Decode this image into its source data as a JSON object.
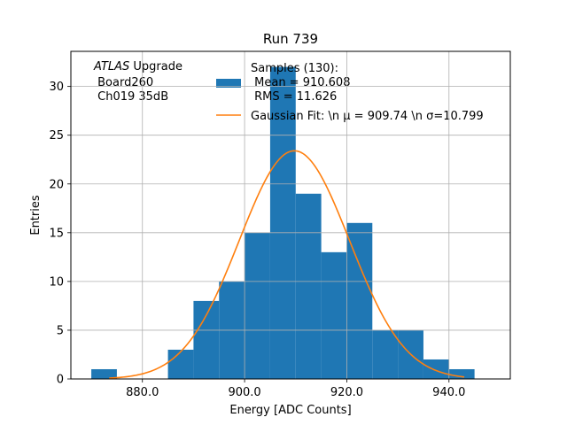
{
  "chart_data": {
    "type": "bar",
    "title": "Run 739",
    "xlabel": "Energy [ADC Counts]",
    "ylabel": "Entries",
    "xlim": [
      866.0,
      952.0
    ],
    "ylim": [
      0,
      33.6
    ],
    "grid": true,
    "xticks": [
      880.0,
      900.0,
      920.0,
      940.0
    ],
    "xtick_labels": [
      "880.0",
      "900.0",
      "920.0",
      "940.0"
    ],
    "yticks": [
      0,
      5,
      10,
      15,
      20,
      25,
      30
    ],
    "ytick_labels": [
      "0",
      "5",
      "10",
      "15",
      "20",
      "25",
      "30"
    ],
    "bin_width": 5,
    "bins": [
      {
        "x0": 870,
        "value": 1
      },
      {
        "x0": 875,
        "value": 0
      },
      {
        "x0": 880,
        "value": 0
      },
      {
        "x0": 885,
        "value": 3
      },
      {
        "x0": 890,
        "value": 8
      },
      {
        "x0": 895,
        "value": 10
      },
      {
        "x0": 900,
        "value": 15
      },
      {
        "x0": 905,
        "value": 32
      },
      {
        "x0": 910,
        "value": 19
      },
      {
        "x0": 915,
        "value": 13
      },
      {
        "x0": 920,
        "value": 16
      },
      {
        "x0": 925,
        "value": 5
      },
      {
        "x0": 930,
        "value": 5
      },
      {
        "x0": 935,
        "value": 2
      },
      {
        "x0": 940,
        "value": 1
      }
    ],
    "gaussian_fit": {
      "mu": 909.74,
      "sigma": 10.799,
      "amplitude": 23.4,
      "x_range": [
        873.5,
        943
      ]
    },
    "colors": {
      "histogram": "#1f77b4",
      "fit": "#ff7f0e",
      "grid": "#b0b0b0"
    },
    "legend": {
      "placement": "top-right",
      "histogram_lines": [
        "Samples (130):",
        " Mean = 910.608",
        " RMS = 11.626"
      ],
      "fit_label": "Gaussian Fit: \\n μ = 909.74 \\n σ=10.799"
    },
    "annotation": {
      "atlas_label": "ATLAS",
      "atlas_suffix": " Upgrade",
      "lines": [
        " Board260",
        " Ch019 35dB"
      ]
    }
  }
}
